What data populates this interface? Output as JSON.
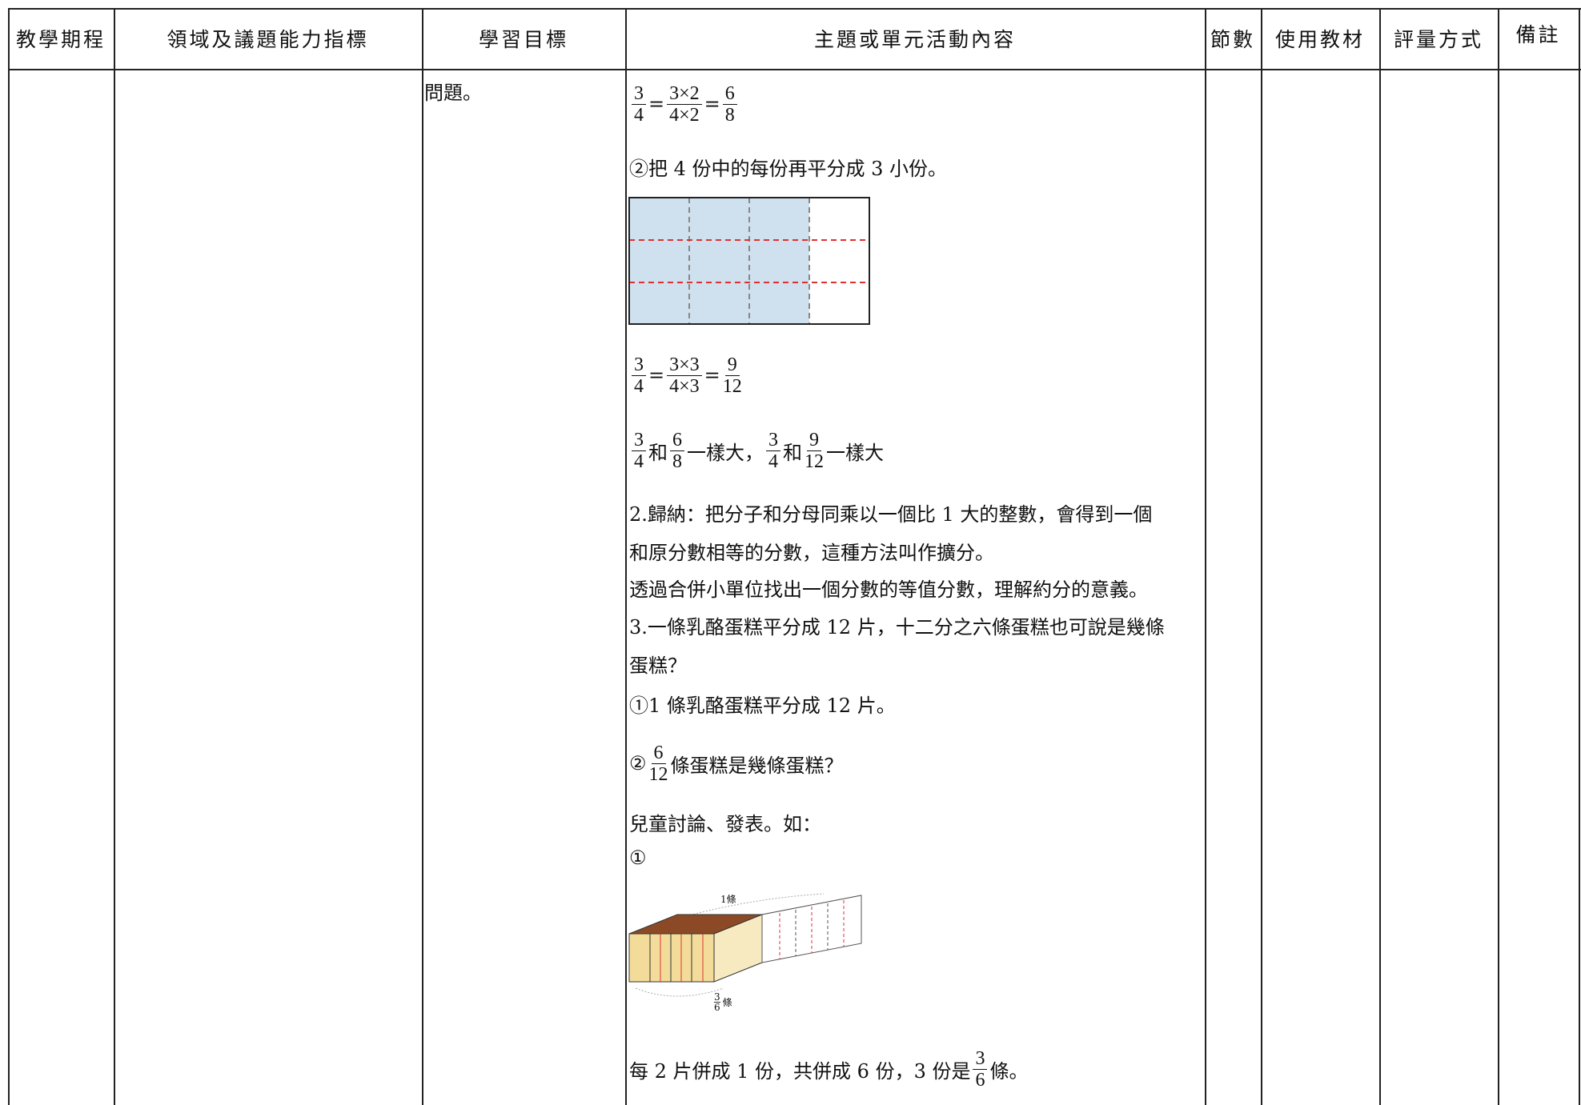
{
  "table": {
    "headers": [
      "教學期程",
      "領域及議題能力指標",
      "學習目標",
      "主題或單元活動內容",
      "節數",
      "使用教材",
      "評量方式",
      "備註"
    ],
    "goal": "問題。",
    "activity": [
      [
        {
          "num": "3",
          "den": "4"
        },
        "=",
        {
          "num": "3×2",
          "den": "4×2"
        },
        "=",
        {
          "num": "6",
          "den": "8"
        }
      ],
      "②把 4 份中的每份再平分成 3 小份。",
      [
        {
          "num": "3",
          "den": "4"
        },
        "=",
        {
          "num": "3×3",
          "den": "4×3"
        },
        "=",
        {
          "num": "9",
          "den": "12"
        }
      ],
      [
        {
          "num": "3",
          "den": "4"
        },
        "和",
        {
          "num": "6",
          "den": "8"
        },
        "一樣大，",
        {
          "num": "3",
          "den": "4"
        },
        "和",
        {
          "num": "9",
          "den": "12"
        },
        "一樣大"
      ],
      "2.歸納：把分子和分母同乘以一個比 1 大的整數，會得到一個",
      "和原分數相等的分數，這種方法叫作擴分。",
      "透過合併小單位找出一個分數的等值分數，理解約分的意義。",
      "3.一條乳酪蛋糕平分成 12 片，十二分之六條蛋糕也可說是幾條",
      "蛋糕？",
      "①1 條乳酪蛋糕平分成 12 片。",
      [
        "②",
        {
          "num": "6",
          "den": "12"
        },
        "條蛋糕是幾條蛋糕？"
      ],
      "兒童討論、發表。如：",
      "①",
      [
        "每 2 片併成 1 份，共併成 6 份，3 份是",
        {
          "num": "3",
          "den": "6"
        },
        "條。"
      ]
    ],
    "cake_figure": {
      "top_label": "1條",
      "bottom_label": {
        "num": "3",
        "den": "6"
      },
      "bottom_suffix": "條"
    }
  }
}
